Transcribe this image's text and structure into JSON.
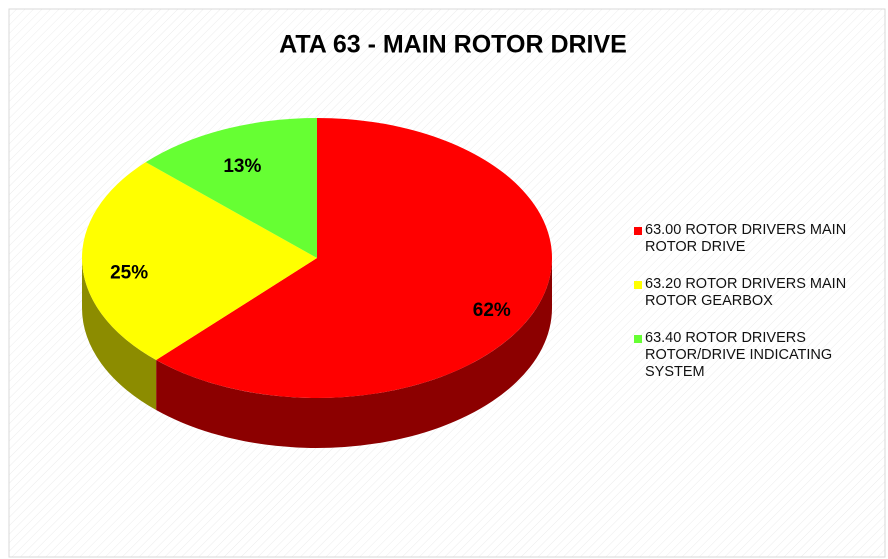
{
  "chart_data": {
    "type": "pie",
    "title": "ATA 63 - MAIN ROTOR DRIVE",
    "categories": [
      "63.00 ROTOR DRIVERS MAIN ROTOR DRIVE",
      "63.20 ROTOR DRIVERS MAIN ROTOR GEARBOX",
      "63.40 ROTOR DRIVERS ROTOR/DRIVE INDICATING SYSTEM"
    ],
    "values": [
      62,
      25,
      13
    ],
    "value_labels": [
      "62%",
      "25%",
      "13%"
    ],
    "colors": [
      "#ff0000",
      "#ffff00",
      "#66ff33"
    ],
    "legend": "right"
  }
}
